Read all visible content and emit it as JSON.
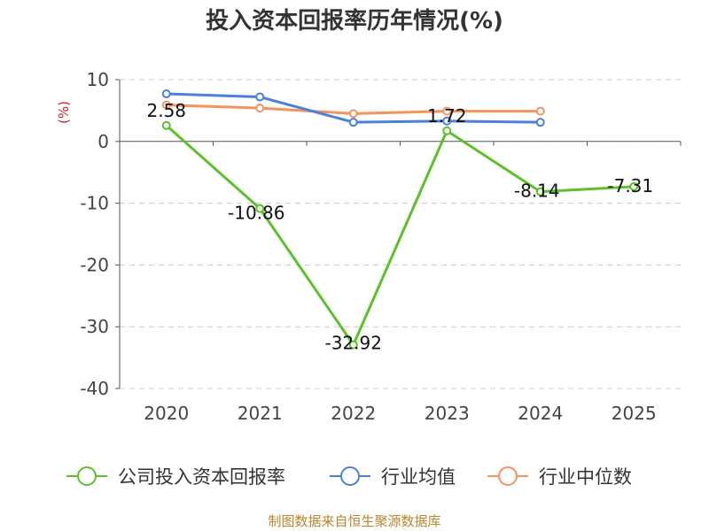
{
  "chart_data": {
    "type": "line",
    "title": "投入资本回报率历年情况(%)",
    "y_unit_label": "(%)",
    "categories": [
      "2020",
      "2021",
      "2022",
      "2023",
      "2024",
      "2025"
    ],
    "ylim": [
      -40,
      10
    ],
    "yticks": [
      10,
      0,
      -10,
      -20,
      -30,
      -40
    ],
    "grid": true,
    "legend_position": "bottom",
    "series": [
      {
        "name": "公司投入资本回报率",
        "color": "#5cc02a",
        "values": [
          2.58,
          -10.86,
          -32.92,
          1.72,
          -8.14,
          -7.31
        ],
        "data_labels": [
          "2.58",
          "-10.86",
          "-32.92",
          "1.72",
          "-8.14",
          "-7.31"
        ]
      },
      {
        "name": "行业均值",
        "color": "#4a7fdc",
        "values": [
          7.7,
          7.2,
          3.1,
          3.3,
          3.1,
          null
        ]
      },
      {
        "name": "行业中位数",
        "color": "#f5935e",
        "values": [
          5.9,
          5.4,
          4.5,
          4.9,
          4.9,
          null
        ]
      }
    ],
    "source_note": "制图数据来自恒生聚源数据库"
  }
}
